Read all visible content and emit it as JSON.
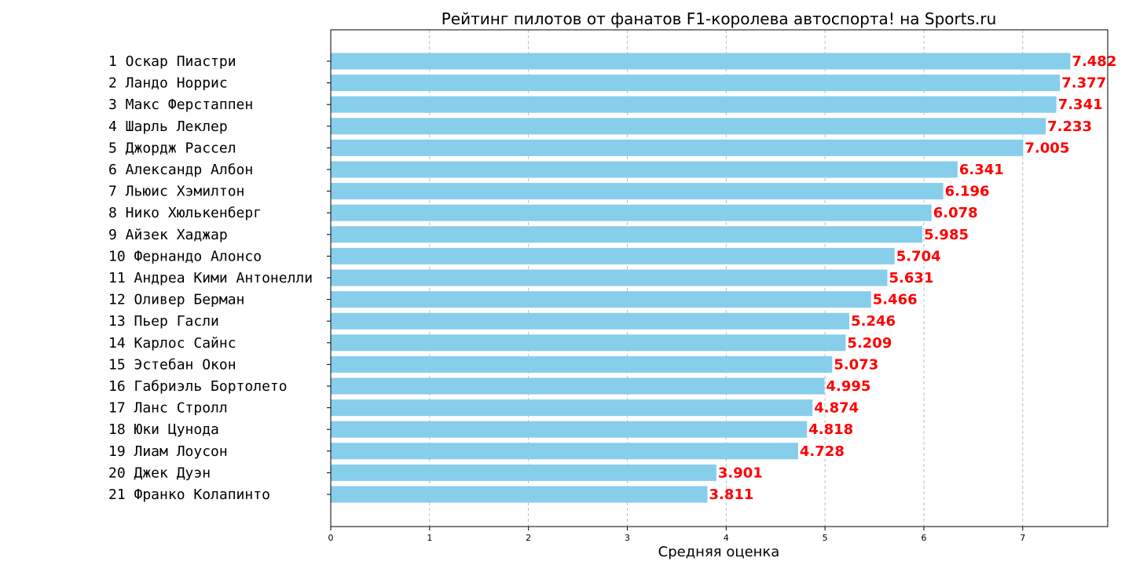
{
  "chart_data": {
    "type": "bar",
    "orientation": "horizontal",
    "title": "Рейтинг пилотов от фанатов F1-королева автоспорта! на Sports.ru",
    "xlabel": "Средняя оценка",
    "ylabel": "",
    "xlim": [
      0,
      7.86
    ],
    "xticks": [
      0,
      1,
      2,
      3,
      4,
      5,
      6,
      7
    ],
    "grid": "x-dashed",
    "categories": [
      "1 Оскар Пиастри",
      "2 Ландо Норрис",
      "3 Макс Ферстаппен",
      "4 Шарль Леклер",
      "5 Джордж Рассел",
      "6 Александр Албон",
      "7 Льюис Хэмилтон",
      "8 Нико Хюлькенберг",
      "9 Айзек Хаджар",
      "10 Фернандо Алонсо",
      "11 Андреа Кими Антонелли",
      "12 Оливер Берман",
      "13 Пьер Гасли",
      "14 Карлос Сайнс",
      "15 Эстебан Окон",
      "16 Габриэль Бортолето",
      "17 Ланс Стролл",
      "18 Юки Цунода",
      "19 Лиам Лоусон",
      "20 Джек Дуэн",
      "21 Франко Колапинто"
    ],
    "values": [
      7.482,
      7.377,
      7.341,
      7.233,
      7.005,
      6.341,
      6.196,
      6.078,
      5.985,
      5.704,
      5.631,
      5.466,
      5.246,
      5.209,
      5.073,
      4.995,
      4.874,
      4.818,
      4.728,
      3.901,
      3.811
    ],
    "value_labels": [
      "7.482",
      "7.377",
      "7.341",
      "7.233",
      "7.005",
      "6.341",
      "6.196",
      "6.078",
      "5.985",
      "5.704",
      "5.631",
      "5.466",
      "5.246",
      "5.209",
      "5.073",
      "4.995",
      "4.874",
      "4.818",
      "4.728",
      "3.901",
      "3.811"
    ],
    "colors": {
      "bar": "#87ceeb",
      "value_label": "#ff0000",
      "grid": "#b0b0b0",
      "axis": "#000000"
    }
  }
}
